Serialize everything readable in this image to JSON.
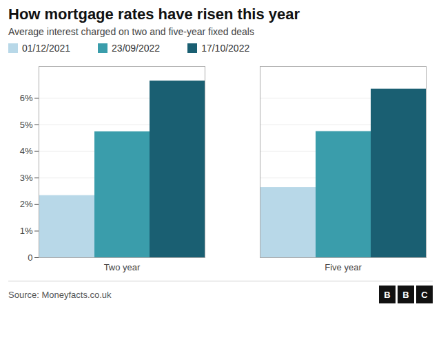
{
  "chart_data": {
    "type": "bar",
    "title": "How mortgage rates have risen this year",
    "subtitle": "Average interest charged on two and five-year fixed deals",
    "source": "Source: Moneyfacts.co.uk",
    "annotations": [
      "BBC"
    ],
    "categories": [
      "Two year",
      "Five year"
    ],
    "series": [
      {
        "name": "01/12/2021",
        "color": "#b8d8e8",
        "values": [
          2.34,
          2.64
        ]
      },
      {
        "name": "23/09/2022",
        "color": "#3a9dab",
        "values": [
          4.74,
          4.75
        ]
      },
      {
        "name": "17/10/2022",
        "color": "#1a5f72",
        "values": [
          6.65,
          6.35
        ]
      }
    ],
    "ylim": [
      0,
      7.2
    ],
    "yticks": [
      0,
      {
        "value": 1,
        "label": "1%"
      },
      {
        "value": 2,
        "label": "2%"
      },
      {
        "value": 3,
        "label": "3%"
      },
      {
        "value": 4,
        "label": "4%"
      },
      {
        "value": 5,
        "label": "5%"
      },
      {
        "value": 6,
        "label": "6%"
      }
    ],
    "grid": true
  }
}
